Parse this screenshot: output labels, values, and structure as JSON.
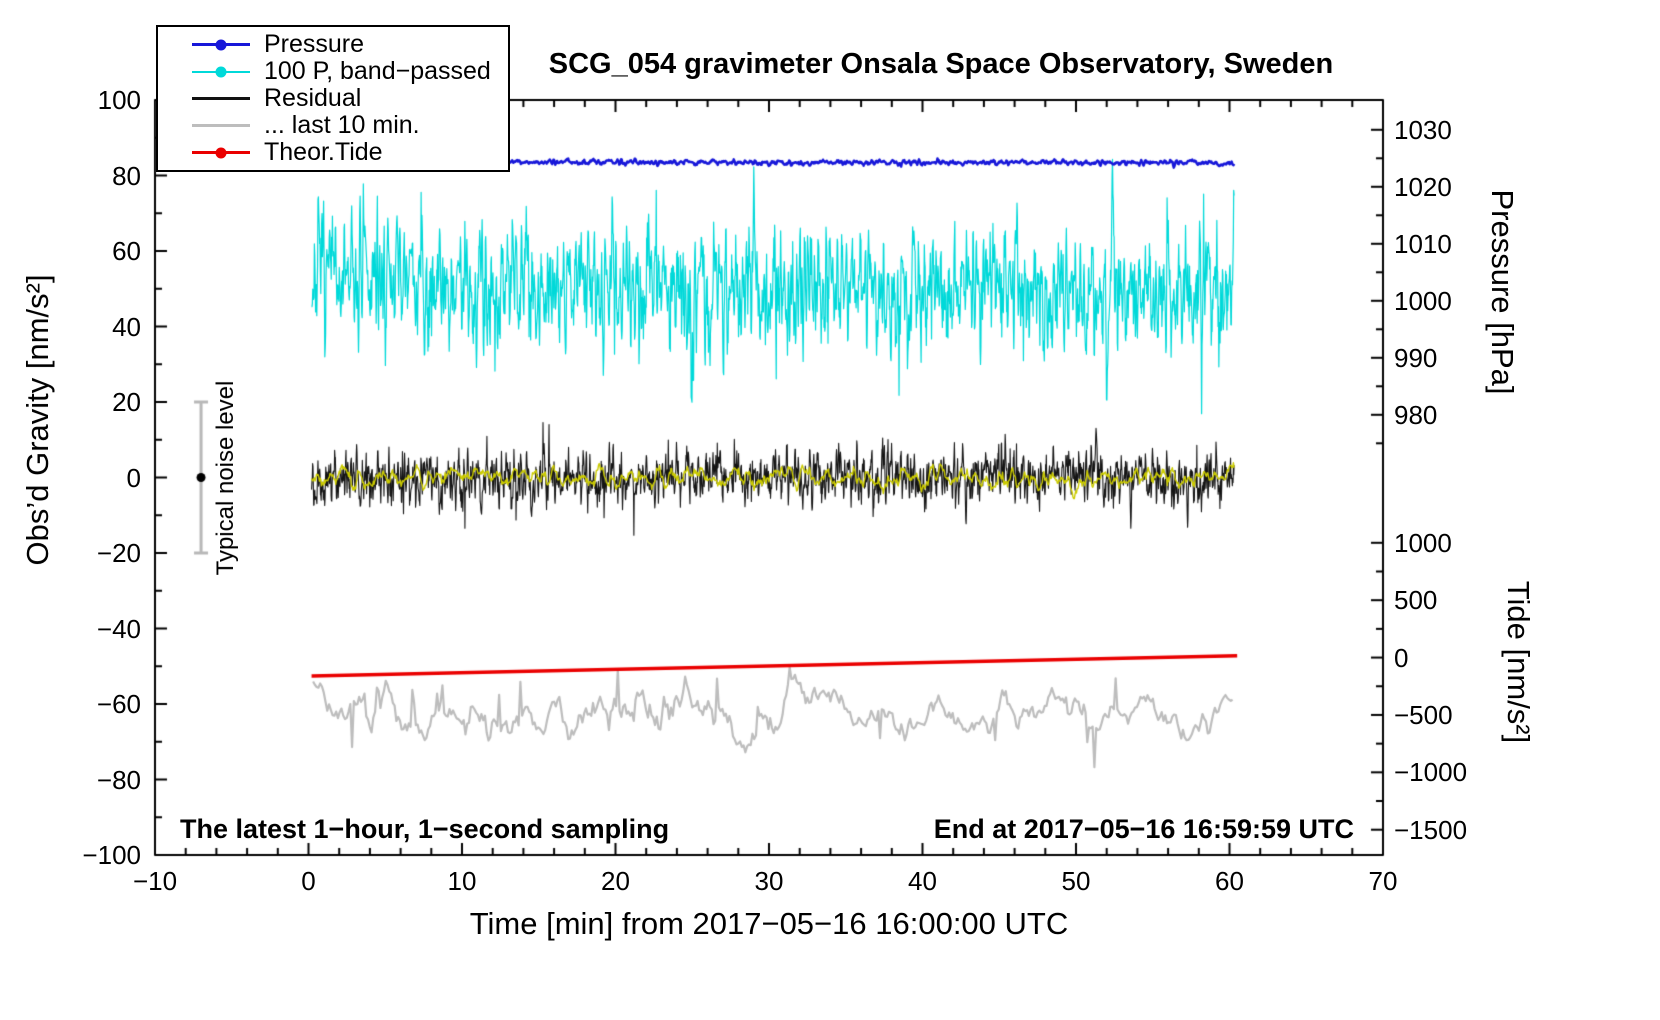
{
  "chart_data": {
    "type": "line",
    "title": "SCG_054 gravimeter Onsala Space Observatory, Sweden",
    "xlabel": "Time [min] from 2017−05−16 16:00:00 UTC",
    "annotations": {
      "sampling": "The latest 1−hour, 1−second sampling",
      "end_time": "End at 2017−05−16 16:59:59 UTC",
      "noise_label": "Typical noise level"
    },
    "legend": [
      {
        "label": "Pressure",
        "color": "#1717d9",
        "lw": 3,
        "dot": true
      },
      {
        "label": "100 P, band−passed",
        "color": "#00d9d9",
        "lw": 2,
        "dot": true
      },
      {
        "label": "Residual",
        "color": "#111111",
        "lw": 3,
        "dot": false
      },
      {
        "label": "... last 10 min.",
        "color": "#bdbdbd",
        "lw": 3,
        "dot": false
      },
      {
        "label": "Theor.Tide",
        "color": "#ea0000",
        "lw": 3.5,
        "dot": true
      }
    ],
    "x_axis": {
      "range": [
        -10,
        70
      ],
      "tick_values": [
        -10,
        0,
        10,
        20,
        30,
        40,
        50,
        60,
        70
      ],
      "tick_labels": [
        "−10",
        "0",
        "10",
        "20",
        "30",
        "40",
        "50",
        "60",
        "70"
      ],
      "minor_step": 2
    },
    "left_axis": {
      "label": "Obs’d Gravity [nm/s²]",
      "range": [
        -100,
        100
      ],
      "tick_values": [
        100,
        80,
        60,
        40,
        20,
        0,
        -20,
        -40,
        -60,
        -80,
        -100
      ],
      "tick_labels": [
        "100",
        "80",
        "60",
        "40",
        "20",
        "0",
        "−20",
        "−40",
        "−60",
        "−80",
        "−100"
      ],
      "minor_step": 10
    },
    "pressure_axis": {
      "label": "Pressure [hPa]",
      "unit_to_gravity": {
        "offset": 969,
        "scale": 1.51
      },
      "tick_values": [
        1030,
        1020,
        1010,
        1000,
        990,
        980
      ],
      "tick_labels": [
        "1030",
        "1020",
        "1010",
        "1000",
        "990",
        "980"
      ],
      "minor_range": [
        975,
        1030
      ],
      "minor_step": 5
    },
    "tide_axis": {
      "label": "Tide [nm/s²]",
      "unit_to_gravity": {
        "offset": -47.7,
        "scale": 0.0304
      },
      "tick_values": [
        1000,
        500,
        0,
        -500,
        -1000,
        -1500
      ],
      "tick_labels": [
        "1000",
        "500",
        "0",
        "−500",
        "−1000",
        "−1500"
      ],
      "minor_range": [
        -1500,
        1000
      ],
      "minor_step": 250
    },
    "noise_bar": {
      "x": -7,
      "center": 0,
      "half_height": 20,
      "cap_half_width": 7,
      "color": "#b8b8b8",
      "dot_color": "#000000"
    },
    "series": [
      {
        "name": "100 P, band−passed",
        "color": "#00d9d9",
        "width": 1.2,
        "kind": "noise",
        "x_span": [
          0.2,
          60.3
        ],
        "n": 2300,
        "base": 52.8,
        "drift": -0.07,
        "std": 8.2,
        "smooth": 1,
        "spike_prob": 0.008,
        "spike_scale": 15,
        "seed": 7,
        "events": [
          {
            "x": 25.0,
            "dv": -38
          },
          {
            "x": 52.0,
            "dv": -40
          },
          {
            "x": 52.4,
            "dv": 24
          },
          {
            "x": 29.0,
            "dv": 22
          }
        ]
      },
      {
        "name": "Pressure",
        "color": "#1717d9",
        "width": 2.5,
        "kind": "noise",
        "x_span": [
          0.2,
          60.3
        ],
        "n": 1500,
        "base": 83.6,
        "drift": -0.004,
        "std": 0.35,
        "smooth": 1,
        "spike_prob": 0,
        "spike_scale": 0,
        "seed": 3,
        "events": []
      },
      {
        "name": "Residual",
        "color": "#141414",
        "width": 1.1,
        "kind": "noise",
        "x_span": [
          0.2,
          60.3
        ],
        "n": 2600,
        "base": 0,
        "drift": 0,
        "std": 3.5,
        "smooth": 1,
        "spike_prob": 0.012,
        "spike_scale": 6,
        "seed": 12,
        "events": [
          {
            "x": 51.3,
            "dv": 14
          }
        ]
      },
      {
        "name": "Residual band−passed",
        "color": "#cbcb00",
        "width": 1.4,
        "kind": "noise",
        "x_span": [
          0.2,
          60.3
        ],
        "n": 1300,
        "base": 0,
        "drift": 0,
        "std": 1.5,
        "smooth": 3,
        "spike_prob": 0,
        "spike_scale": 0,
        "seed": 21,
        "events": []
      },
      {
        "name": "... last 10 min.",
        "color": "#bdbdbd",
        "width": 2.2,
        "kind": "noise",
        "x_span": [
          0.3,
          60.2
        ],
        "n": 520,
        "base": -62,
        "drift": 0,
        "std": 4,
        "smooth": 4,
        "spike_prob": 0.02,
        "spike_scale": 6,
        "seed": 30,
        "events": [
          {
            "x": 6.8,
            "dv": 10
          },
          {
            "x": 4.5,
            "dv": 8
          },
          {
            "x": 29.3,
            "dv": 9
          }
        ]
      },
      {
        "name": "Theor.Tide",
        "color": "#ea0000",
        "width": 3.5,
        "kind": "segment",
        "points": [
          [
            0.2,
            -52.6
          ],
          [
            60.5,
            -47.2
          ]
        ]
      }
    ]
  }
}
